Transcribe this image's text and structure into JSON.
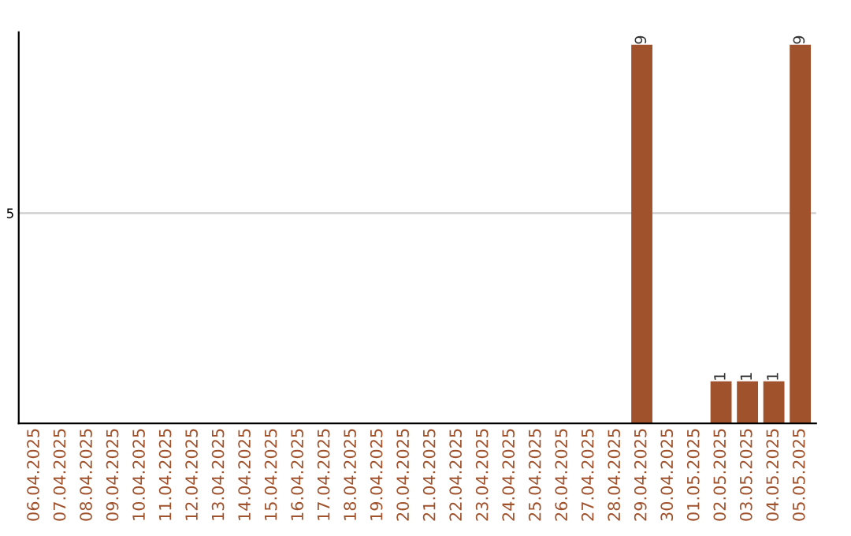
{
  "chart_data": {
    "type": "bar",
    "categories": [
      "06.04.2025",
      "07.04.2025",
      "08.04.2025",
      "09.04.2025",
      "10.04.2025",
      "11.04.2025",
      "12.04.2025",
      "13.04.2025",
      "14.04.2025",
      "15.04.2025",
      "16.04.2025",
      "17.04.2025",
      "18.04.2025",
      "19.04.2025",
      "20.04.2025",
      "21.04.2025",
      "22.04.2025",
      "23.04.2025",
      "24.04.2025",
      "25.04.2025",
      "26.04.2025",
      "27.04.2025",
      "28.04.2025",
      "29.04.2025",
      "30.04.2025",
      "01.05.2025",
      "02.05.2025",
      "03.05.2025",
      "04.05.2025",
      "05.05.2025"
    ],
    "values": [
      null,
      null,
      null,
      null,
      null,
      null,
      null,
      null,
      null,
      null,
      null,
      null,
      null,
      null,
      null,
      null,
      null,
      null,
      null,
      null,
      null,
      null,
      null,
      9,
      null,
      null,
      1,
      1,
      1,
      9
    ],
    "data_labels": true,
    "color": "#a0522d",
    "ylim": [
      0,
      9.3
    ],
    "yticks": [
      5
    ],
    "grid": "y"
  }
}
